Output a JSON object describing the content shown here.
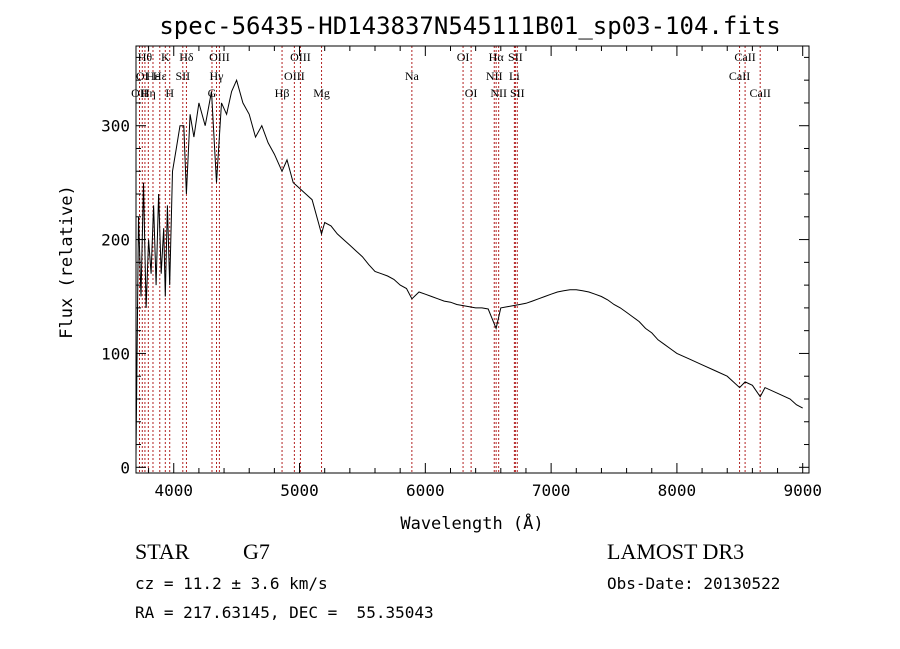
{
  "chart_data": {
    "type": "line",
    "title": "spec-56435-HD143837N545111B01_sp03-104.fits",
    "xlabel": "Wavelength (Å)",
    "ylabel": "Flux (relative)",
    "xlim": [
      3700,
      9050
    ],
    "ylim": [
      -5,
      370
    ],
    "xticks": [
      4000,
      5000,
      6000,
      7000,
      8000,
      9000
    ],
    "yticks": [
      0,
      100,
      200,
      300
    ],
    "line_color": "#000000",
    "marker_color": "#b22222",
    "grid": false,
    "legend": "none",
    "series": [
      {
        "x": [
          3700,
          3720,
          3740,
          3760,
          3780,
          3800,
          3820,
          3840,
          3860,
          3880,
          3900,
          3920,
          3933,
          3950,
          3968,
          3990,
          4020,
          4050,
          4080,
          4101,
          4130,
          4160,
          4200,
          4250,
          4300,
          4340,
          4380,
          4420,
          4460,
          4500,
          4550,
          4600,
          4650,
          4700,
          4750,
          4800,
          4861,
          4900,
          4950,
          5000,
          5050,
          5100,
          5150,
          5175,
          5200,
          5250,
          5300,
          5350,
          5400,
          5450,
          5500,
          5550,
          5600,
          5650,
          5700,
          5750,
          5800,
          5850,
          5893,
          5950,
          6000,
          6050,
          6100,
          6150,
          6200,
          6250,
          6300,
          6350,
          6400,
          6450,
          6500,
          6563,
          6600,
          6650,
          6700,
          6750,
          6800,
          6850,
          6900,
          6950,
          7000,
          7050,
          7100,
          7150,
          7200,
          7250,
          7300,
          7350,
          7400,
          7450,
          7500,
          7550,
          7600,
          7650,
          7700,
          7750,
          7800,
          7850,
          7900,
          7950,
          8000,
          8100,
          8200,
          8300,
          8400,
          8498,
          8542,
          8600,
          8662,
          8700,
          8800,
          8900,
          8950,
          9000
        ],
        "y": [
          10,
          220,
          150,
          250,
          140,
          200,
          170,
          230,
          160,
          240,
          170,
          210,
          150,
          230,
          160,
          260,
          280,
          300,
          300,
          240,
          310,
          290,
          320,
          300,
          330,
          250,
          320,
          310,
          330,
          340,
          320,
          310,
          290,
          300,
          285,
          275,
          260,
          270,
          250,
          245,
          240,
          235,
          215,
          205,
          215,
          212,
          205,
          200,
          195,
          190,
          185,
          178,
          172,
          170,
          168,
          165,
          160,
          157,
          148,
          154,
          152,
          150,
          148,
          146,
          145,
          143,
          142,
          141,
          140,
          140,
          139,
          122,
          140,
          141,
          142,
          143,
          144,
          146,
          148,
          150,
          152,
          154,
          155,
          156,
          156,
          155,
          154,
          152,
          150,
          147,
          143,
          140,
          136,
          132,
          128,
          122,
          118,
          112,
          108,
          104,
          100,
          95,
          90,
          85,
          80,
          70,
          75,
          72,
          62,
          70,
          65,
          60,
          55,
          52
        ]
      }
    ],
    "lines": [
      {
        "x": 3728,
        "label": "OII",
        "row": 2
      },
      {
        "x": 3750,
        "label": "OI",
        "row": 1
      },
      {
        "x": 3771,
        "label": "Hθ",
        "row": 0
      },
      {
        "x": 3798,
        "label": "Hη",
        "row": 2
      },
      {
        "x": 3835,
        "label": "Hε",
        "row": 1
      },
      {
        "x": 3889,
        "label": "Hε",
        "row": 1
      },
      {
        "x": 3933,
        "label": "K",
        "row": 0
      },
      {
        "x": 3968,
        "label": "H",
        "row": 2
      },
      {
        "x": 4072,
        "label": "SII",
        "row": 1
      },
      {
        "x": 4101,
        "label": "Hδ",
        "row": 0
      },
      {
        "x": 4304,
        "label": "G",
        "row": 2
      },
      {
        "x": 4340,
        "label": "Hγ",
        "row": 1
      },
      {
        "x": 4363,
        "label": "OIII",
        "row": 0
      },
      {
        "x": 4861,
        "label": "Hβ",
        "row": 2
      },
      {
        "x": 4959,
        "label": "OIII",
        "row": 1
      },
      {
        "x": 5007,
        "label": "OIII",
        "row": 0
      },
      {
        "x": 5175,
        "label": "Mg",
        "row": 2
      },
      {
        "x": 5893,
        "label": "Na",
        "row": 1
      },
      {
        "x": 6300,
        "label": "OI",
        "row": 0
      },
      {
        "x": 6364,
        "label": "OI",
        "row": 2
      },
      {
        "x": 6548,
        "label": "NII",
        "row": 1
      },
      {
        "x": 6563,
        "label": "Hα",
        "row": 0
      },
      {
        "x": 6583,
        "label": "NII",
        "row": 2
      },
      {
        "x": 6708,
        "label": "Li",
        "row": 1
      },
      {
        "x": 6716,
        "label": "SII",
        "row": 0
      },
      {
        "x": 6731,
        "label": "SII",
        "row": 2
      },
      {
        "x": 8498,
        "label": "CaII",
        "row": 1
      },
      {
        "x": 8542,
        "label": "CaII",
        "row": 0
      },
      {
        "x": 8662,
        "label": "CaII",
        "row": 2
      }
    ]
  },
  "info": {
    "class_label": "STAR",
    "subclass": "G7",
    "cz": "cz = 11.2 ± 3.6 km/s",
    "radec": "RA = 217.63145, DEC =  55.35043",
    "survey": "LAMOST DR3",
    "obs_date": "Obs-Date: 20130522"
  }
}
